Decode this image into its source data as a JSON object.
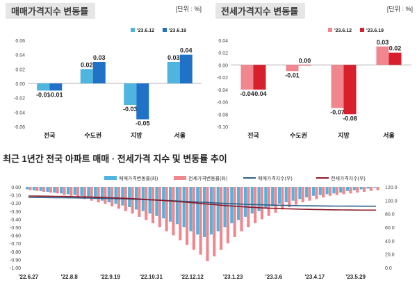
{
  "left_panel": {
    "title": "매매가격지수 변동률",
    "unit": "[단위 : %]"
  },
  "right_panel": {
    "title": "전세가격지수 변동률",
    "unit": "[단위 : %]"
  },
  "bottom_section": {
    "title": "최근 1년간 전국 아파트 매매 · 전세가격 지수 및 변동률 추이"
  },
  "colors": {
    "sale_light": "#4fb4de",
    "sale_dark": "#1f72c6",
    "jeonse_light": "#f0878f",
    "jeonse_dark": "#d8202c",
    "sale_index_line": "#2d5f86",
    "jeonse_index_line": "#8b1a2a"
  },
  "chart_data": [
    {
      "type": "bar",
      "title": "매매가격지수 변동률",
      "categories": [
        "전국",
        "수도권",
        "지방",
        "서울"
      ],
      "series": [
        {
          "name": "'23.6.12",
          "values": [
            -0.01,
            0.02,
            -0.03,
            0.03
          ],
          "labels": [
            "-0.01",
            "0.02",
            "-0.03",
            "0.03"
          ]
        },
        {
          "name": "'23.6.19",
          "values": [
            -0.01,
            0.03,
            -0.05,
            0.04
          ],
          "labels": [
            "-0.01",
            "0.03",
            "-0.05",
            "0.04"
          ]
        }
      ],
      "ylim": [
        -0.06,
        0.06
      ],
      "yticks": [
        "0.06",
        "0.04",
        "0.02",
        "0.00",
        "-0.02",
        "-0.04",
        "-0.06"
      ],
      "legend": "top-right",
      "grid": false
    },
    {
      "type": "bar",
      "title": "전세가격지수 변동률",
      "categories": [
        "전국",
        "수도권",
        "지방",
        "서울"
      ],
      "series": [
        {
          "name": "'23.6.12",
          "values": [
            -0.04,
            -0.01,
            -0.07,
            0.03
          ],
          "labels": [
            "-0.04",
            "-0.01",
            "-0.07",
            "0.03"
          ]
        },
        {
          "name": "'23.6.19",
          "values": [
            -0.04,
            0.0,
            -0.08,
            0.02
          ],
          "labels": [
            "-0.04",
            "0.00",
            "-0.08",
            "0.02"
          ]
        }
      ],
      "ylim": [
        -0.1,
        0.04
      ],
      "yticks": [
        "0.04",
        "0.02",
        "0.00",
        "-0.02",
        "-0.04",
        "-0.06",
        "-0.08",
        "-0.10"
      ],
      "legend": "top-right",
      "grid": false
    },
    {
      "type": "bar",
      "title": "최근 1년간 전국 아파트 매매 · 전세가격 지수 및 변동률 추이",
      "x_tick_labels": [
        "'22.6.27",
        "'22.8.8",
        "'22.9.19",
        "'22.10.31",
        "'22.12.12",
        "'23.1.23",
        "'23.3.6",
        "'23.4.17",
        "'23.5.29"
      ],
      "weeks": 52,
      "legend": "top",
      "ylim_left": [
        -1.0,
        0.0
      ],
      "yticks_left": [
        "0.00",
        "-0.10",
        "-0.20",
        "-0.30",
        "-0.40",
        "-0.50",
        "-0.60",
        "-0.70",
        "-0.80",
        "-0.90",
        "-1.00"
      ],
      "ylim_right": [
        0,
        120
      ],
      "yticks_right": [
        "120.0",
        "100.0",
        "80.0",
        "60.0",
        "40.0",
        "20.0",
        "0.0"
      ],
      "series": [
        {
          "name": "매매가격변동률(좌)",
          "kind": "bar",
          "axis": "left",
          "values": [
            -0.03,
            -0.04,
            -0.05,
            -0.06,
            -0.07,
            -0.08,
            -0.09,
            -0.1,
            -0.11,
            -0.13,
            -0.15,
            -0.17,
            -0.19,
            -0.21,
            -0.23,
            -0.25,
            -0.28,
            -0.3,
            -0.33,
            -0.36,
            -0.39,
            -0.43,
            -0.46,
            -0.5,
            -0.55,
            -0.59,
            -0.62,
            -0.59,
            -0.55,
            -0.5,
            -0.45,
            -0.41,
            -0.37,
            -0.33,
            -0.3,
            -0.27,
            -0.24,
            -0.21,
            -0.19,
            -0.17,
            -0.15,
            -0.13,
            -0.11,
            -0.1,
            -0.09,
            -0.08,
            -0.07,
            -0.05,
            -0.04,
            -0.03,
            -0.02,
            -0.01
          ]
        },
        {
          "name": "전세가격변동률(좌)",
          "kind": "bar",
          "axis": "left",
          "values": [
            -0.04,
            -0.05,
            -0.06,
            -0.07,
            -0.08,
            -0.1,
            -0.11,
            -0.13,
            -0.15,
            -0.17,
            -0.19,
            -0.21,
            -0.24,
            -0.27,
            -0.3,
            -0.33,
            -0.37,
            -0.41,
            -0.45,
            -0.5,
            -0.55,
            -0.6,
            -0.66,
            -0.72,
            -0.78,
            -0.84,
            -0.92,
            -0.86,
            -0.78,
            -0.7,
            -0.62,
            -0.55,
            -0.5,
            -0.45,
            -0.4,
            -0.36,
            -0.32,
            -0.28,
            -0.25,
            -0.22,
            -0.19,
            -0.17,
            -0.15,
            -0.13,
            -0.11,
            -0.1,
            -0.09,
            -0.08,
            -0.07,
            -0.06,
            -0.05,
            -0.04
          ]
        },
        {
          "name": "매매가격지수(우)",
          "kind": "line",
          "axis": "right",
          "values": [
            104.5,
            104.4,
            104.3,
            104.2,
            104.1,
            104.0,
            103.9,
            103.8,
            103.6,
            103.4,
            103.2,
            103.0,
            102.8,
            102.5,
            102.2,
            101.9,
            101.6,
            101.2,
            100.8,
            100.4,
            100.0,
            99.5,
            99.0,
            98.5,
            98.0,
            97.5,
            97.0,
            96.4,
            95.9,
            95.4,
            95.0,
            94.6,
            94.2,
            93.8,
            93.5,
            93.2,
            92.9,
            92.7,
            92.5,
            92.3,
            92.1,
            92.0,
            91.9,
            91.8,
            91.7,
            91.6,
            91.5,
            91.4,
            91.4,
            91.3,
            91.3,
            91.3
          ]
        },
        {
          "name": "전세가격지수(우)",
          "kind": "line",
          "axis": "right",
          "values": [
            106.5,
            106.4,
            106.3,
            106.2,
            106.0,
            105.9,
            105.7,
            105.5,
            105.3,
            105.0,
            104.7,
            104.4,
            104.0,
            103.6,
            103.2,
            102.7,
            102.2,
            101.6,
            101.0,
            100.4,
            99.7,
            99.0,
            98.2,
            97.4,
            96.6,
            95.7,
            94.8,
            93.9,
            93.0,
            92.2,
            91.5,
            90.8,
            90.2,
            89.6,
            89.1,
            88.6,
            88.2,
            87.8,
            87.5,
            87.2,
            86.9,
            86.7,
            86.5,
            86.3,
            86.1,
            86.0,
            85.9,
            85.8,
            85.7,
            85.6,
            85.5,
            85.5
          ]
        }
      ]
    }
  ]
}
